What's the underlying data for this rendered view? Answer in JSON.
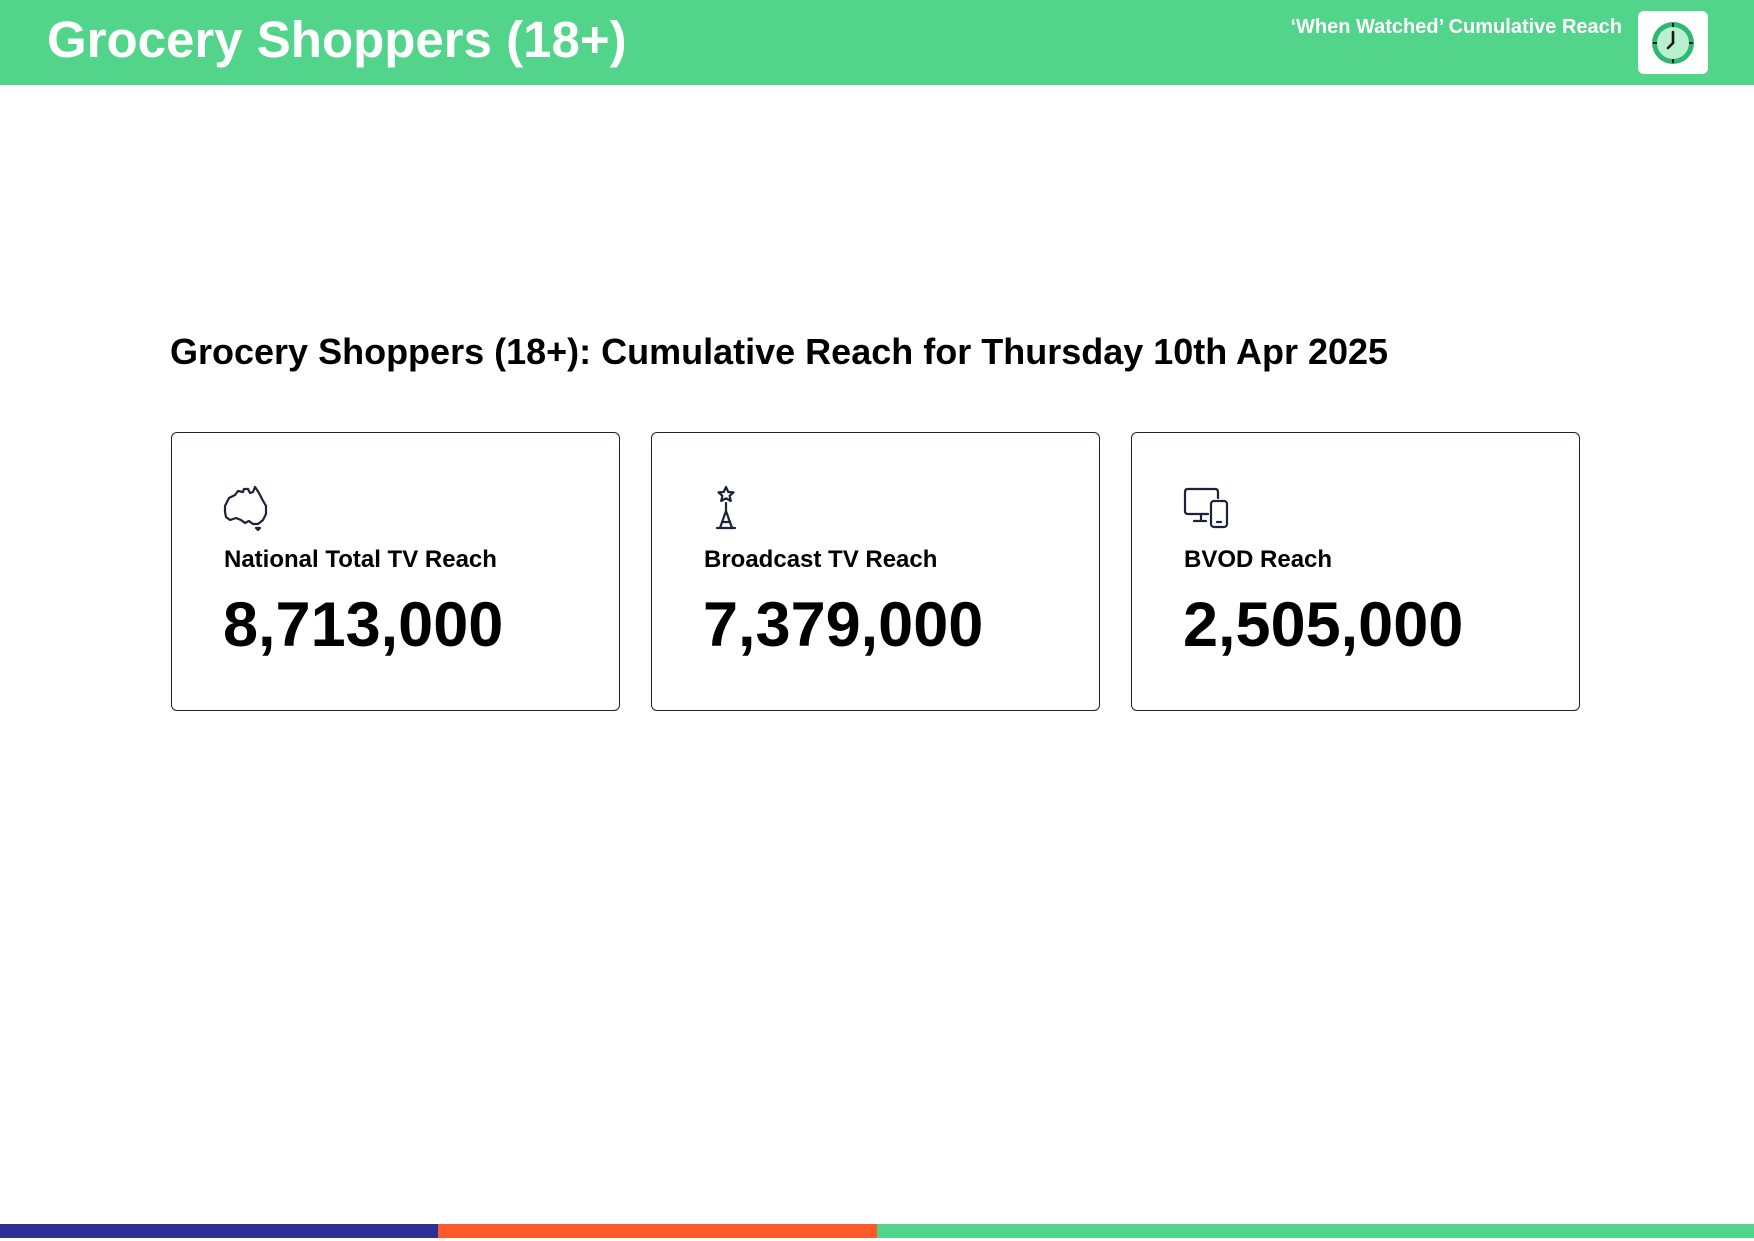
{
  "header": {
    "title": "Grocery Shoppers (18+)",
    "subtitle": "‘When Watched’ Cumulative Reach",
    "logo_icon": "clock-icon"
  },
  "report": {
    "title": "Grocery Shoppers (18+): Cumulative Reach for Thursday 10th Apr 2025"
  },
  "cards": [
    {
      "icon": "australia-map-icon",
      "label": "National Total TV Reach",
      "value": "8,713,000"
    },
    {
      "icon": "broadcast-tower-icon",
      "label": "Broadcast TV Reach",
      "value": "7,379,000"
    },
    {
      "icon": "devices-icon",
      "label": "BVOD Reach",
      "value": "2,505,000"
    }
  ],
  "colors": {
    "header_green": "#52d48a",
    "card_border": "#1c2238",
    "footer_blue": "#2e3192",
    "footer_orange": "#ff5a2c",
    "footer_green": "#52d48a"
  }
}
